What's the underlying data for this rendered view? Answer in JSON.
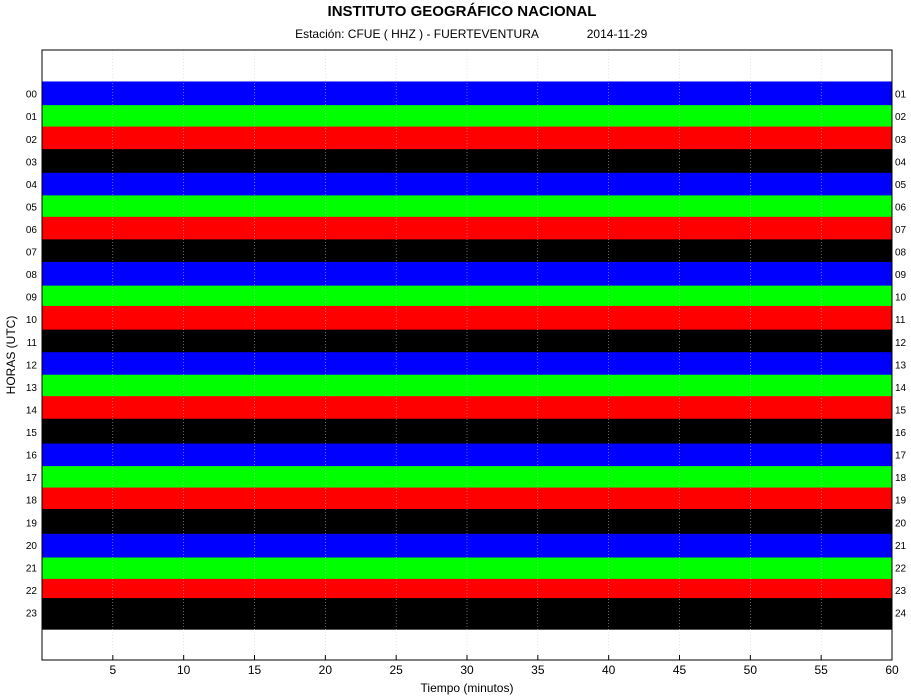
{
  "chart_data": {
    "type": "helicorder",
    "title": "INSTITUTO GEOGRÁFICO NACIONAL",
    "station": "Estación:  CFUE ( HHZ ) - FUERTEVENTURA",
    "date": "2014-11-29",
    "x_label": "Tiempo (minutos)",
    "y_label": "HORAS (UTC)",
    "xlim": [
      0,
      60
    ],
    "xticks": [
      5,
      10,
      15,
      20,
      25,
      30,
      35,
      40,
      45,
      50,
      55,
      60
    ],
    "grid": true,
    "rows": [
      {
        "label": "00",
        "end_label": "01",
        "color": "#0000ff",
        "amplitude": 0.6
      },
      {
        "label": "01",
        "end_label": "02",
        "color": "#00ff00",
        "amplitude": 0.55
      },
      {
        "label": "02",
        "end_label": "03",
        "color": "#ff0000",
        "amplitude": 0.6
      },
      {
        "label": "03",
        "end_label": "04",
        "color": "#000000",
        "amplitude": 0.6
      },
      {
        "label": "04",
        "end_label": "05",
        "color": "#0000ff",
        "amplitude": 0.55
      },
      {
        "label": "05",
        "end_label": "06",
        "color": "#00ff00",
        "amplitude": 0.55
      },
      {
        "label": "06",
        "end_label": "07",
        "color": "#ff0000",
        "amplitude": 0.6
      },
      {
        "label": "07",
        "end_label": "08",
        "color": "#000000",
        "amplitude": 0.6
      },
      {
        "label": "08",
        "end_label": "09",
        "color": "#0000ff",
        "amplitude": 0.6
      },
      {
        "label": "09",
        "end_label": "10",
        "color": "#00ff00",
        "amplitude": 0.55
      },
      {
        "label": "10",
        "end_label": "11",
        "color": "#ff0000",
        "amplitude": 0.65
      },
      {
        "label": "11",
        "end_label": "12",
        "color": "#000000",
        "amplitude": 0.6
      },
      {
        "label": "12",
        "end_label": "13",
        "color": "#0000ff",
        "amplitude": 0.6
      },
      {
        "label": "13",
        "end_label": "14",
        "color": "#00ff00",
        "amplitude": 0.6
      },
      {
        "label": "14",
        "end_label": "15",
        "color": "#ff0000",
        "amplitude": 0.65
      },
      {
        "label": "15",
        "end_label": "16",
        "color": "#000000",
        "amplitude": 0.65
      },
      {
        "label": "16",
        "end_label": "17",
        "color": "#0000ff",
        "amplitude": 0.55
      },
      {
        "label": "17",
        "end_label": "18",
        "color": "#00ff00",
        "amplitude": 0.55
      },
      {
        "label": "18",
        "end_label": "19",
        "color": "#ff0000",
        "amplitude": 0.6
      },
      {
        "label": "19",
        "end_label": "20",
        "color": "#000000",
        "amplitude": 0.65
      },
      {
        "label": "20",
        "end_label": "21",
        "color": "#0000ff",
        "amplitude": 0.55
      },
      {
        "label": "21",
        "end_label": "22",
        "color": "#00ff00",
        "amplitude": 0.5
      },
      {
        "label": "22",
        "end_label": "23",
        "color": "#ff0000",
        "amplitude": 0.55
      },
      {
        "label": "23",
        "end_label": "24",
        "color": "#000000",
        "amplitude": 0.7
      }
    ]
  }
}
